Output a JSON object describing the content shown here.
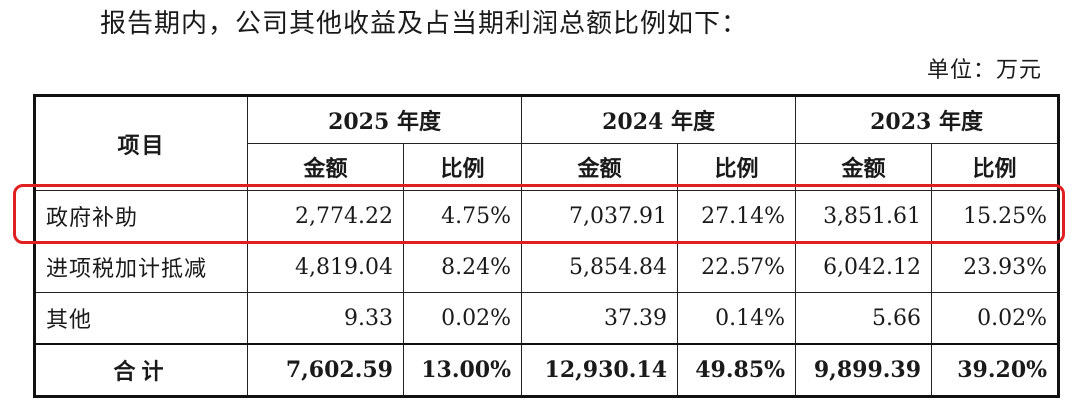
{
  "intro_text": "报告期内，公司其他收益及占当期利润总额比例如下：",
  "unit_text": "单位：万元",
  "table": {
    "item_header": "项目",
    "years": [
      "2025 年度",
      "2024 年度",
      "2023 年度"
    ],
    "sub_headers": [
      "金额",
      "比例"
    ],
    "rows": [
      {
        "label": "政府补助",
        "values": [
          "2,774.22",
          "4.75%",
          "7,037.91",
          "27.14%",
          "3,851.61",
          "15.25%"
        ],
        "highlighted": true
      },
      {
        "label": "进项税加计抵减",
        "values": [
          "4,819.04",
          "8.24%",
          "5,854.84",
          "22.57%",
          "6,042.12",
          "23.93%"
        ],
        "highlighted": false
      },
      {
        "label": "其他",
        "values": [
          "9.33",
          "0.02%",
          "37.39",
          "0.14%",
          "5.66",
          "0.02%"
        ],
        "highlighted": false
      }
    ],
    "total": {
      "label": "合计",
      "values": [
        "7,602.59",
        "13.00%",
        "12,930.14",
        "49.85%",
        "9,899.39",
        "39.20%"
      ]
    }
  },
  "colors": {
    "highlight_border": "#e02020",
    "text": "#1a1a1a"
  }
}
